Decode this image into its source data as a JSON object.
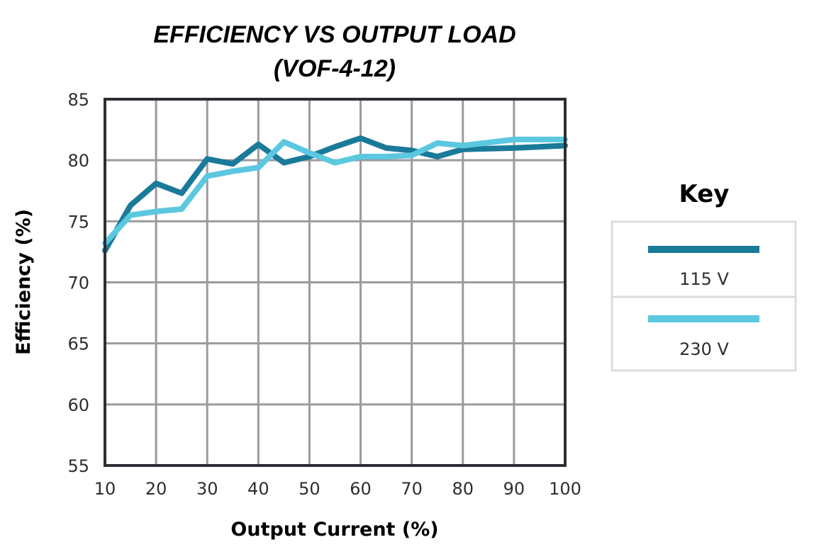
{
  "chart_data": {
    "type": "line",
    "title": "EFFICIENCY VS OUTPUT LOAD",
    "subtitle": "(VOF-4-12)",
    "xlabel": "Output Current (%)",
    "ylabel": "Efficiency (%)",
    "xlim": [
      10,
      100
    ],
    "ylim": [
      55,
      85
    ],
    "xticks": [
      10,
      20,
      30,
      40,
      50,
      60,
      70,
      80,
      90,
      100
    ],
    "yticks": [
      55,
      60,
      65,
      70,
      75,
      80,
      85
    ],
    "grid": true,
    "legend": {
      "title": "Key",
      "placement": "right"
    },
    "series": [
      {
        "name": "115 V",
        "color": "#1a7a99",
        "x": [
          10,
          15,
          20,
          25,
          30,
          35,
          40,
          45,
          50,
          55,
          60,
          65,
          70,
          75,
          80,
          90,
          100
        ],
        "values": [
          72.6,
          76.3,
          78.1,
          77.3,
          80.1,
          79.7,
          81.3,
          79.8,
          80.3,
          81.1,
          81.8,
          81.0,
          80.8,
          80.3,
          80.9,
          81.0,
          81.2
        ]
      },
      {
        "name": "230 V",
        "color": "#5bc8e0",
        "x": [
          10,
          15,
          20,
          25,
          30,
          35,
          40,
          45,
          50,
          55,
          60,
          65,
          70,
          75,
          80,
          90,
          100
        ],
        "values": [
          73.2,
          75.5,
          75.8,
          76.0,
          78.7,
          79.1,
          79.4,
          81.5,
          80.6,
          79.8,
          80.3,
          80.3,
          80.4,
          81.4,
          81.2,
          81.7,
          81.7
        ]
      }
    ]
  }
}
